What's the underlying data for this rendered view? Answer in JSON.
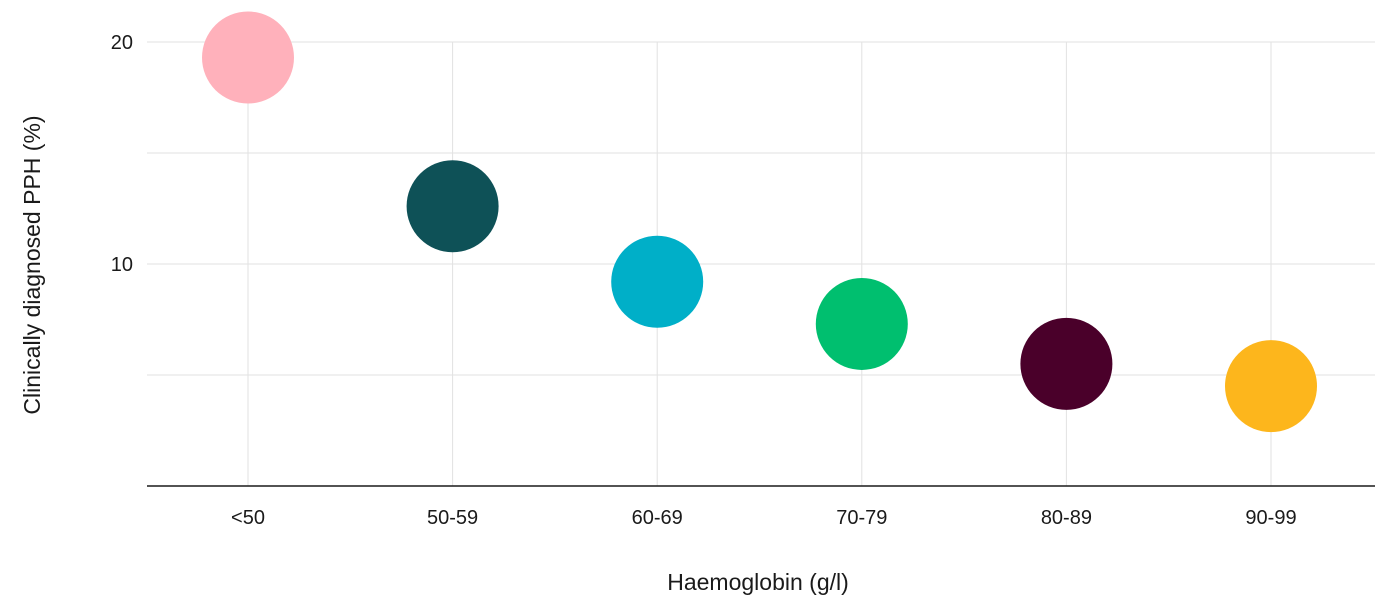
{
  "chart_data": {
    "type": "scatter",
    "xlabel": "Haemoglobin (g/l)",
    "ylabel": "Clinically diagnosed PPH (%)",
    "categories": [
      "<50",
      "50-59",
      "60-69",
      "70-79",
      "80-89",
      "90-99"
    ],
    "values": [
      19.3,
      12.6,
      9.2,
      7.3,
      5.5,
      4.5
    ],
    "colors": [
      "#ffb1bb",
      "#0e5157",
      "#00afc8",
      "#00bf6f",
      "#4a002a",
      "#fdb61c"
    ],
    "ylim": [
      0,
      20
    ],
    "yticks": [
      10,
      20
    ],
    "grid": true,
    "legend": "none"
  }
}
